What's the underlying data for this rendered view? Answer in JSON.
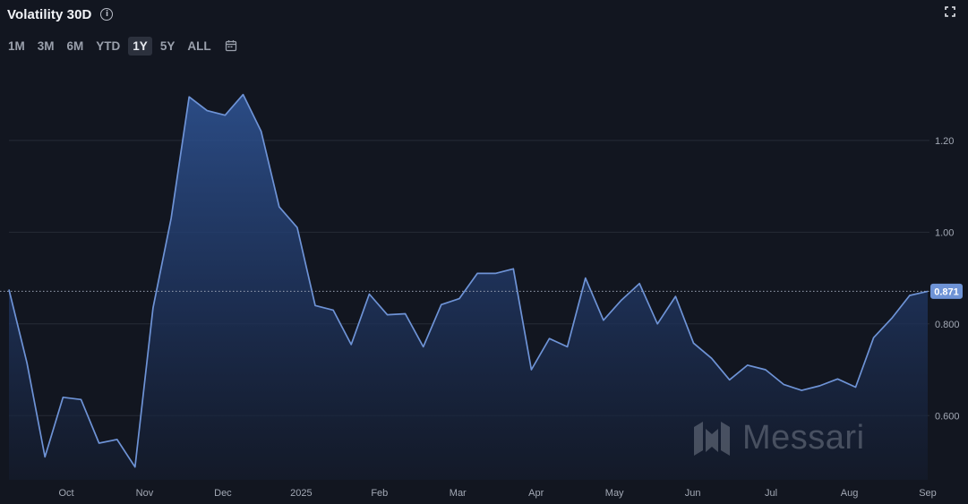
{
  "header": {
    "title": "Volatility 30D"
  },
  "range_buttons": [
    "1M",
    "3M",
    "6M",
    "YTD",
    "1Y",
    "5Y",
    "ALL"
  ],
  "active_range": "1Y",
  "watermark": {
    "text": "Messari"
  },
  "icons": {
    "info": "info-icon",
    "expand": "expand-icon",
    "calendar": "calendar-icon",
    "brand": "messari-logo-icon"
  },
  "chart_data": {
    "type": "area",
    "title": "Volatility 30D",
    "xlabel": "",
    "ylabel": "",
    "ylim": [
      0.46,
      1.35
    ],
    "x_tick_labels": [
      "Oct",
      "Nov",
      "Dec",
      "2025",
      "Feb",
      "Mar",
      "Apr",
      "May",
      "Jun",
      "Jul",
      "Aug",
      "Sep"
    ],
    "y_tick_labels": [
      "0.600",
      "0.800",
      "1.00",
      "1.20"
    ],
    "y_ticks": [
      0.6,
      0.8,
      1.0,
      1.2
    ],
    "current_value_label": "0.871",
    "current_value": 0.871,
    "grid": true,
    "line_color": "#6e93d6",
    "series": [
      {
        "values": [
          0.875,
          0.715,
          0.51,
          0.64,
          0.635,
          0.54,
          0.548,
          0.488,
          0.835,
          1.03,
          1.295,
          1.265,
          1.255,
          1.3,
          1.22,
          1.055,
          1.01,
          0.84,
          0.83,
          0.755,
          0.865,
          0.82,
          0.822,
          0.75,
          0.842,
          0.855,
          0.91,
          0.91,
          0.92,
          0.7,
          0.768,
          0.75,
          0.9,
          0.808,
          0.852,
          0.888,
          0.8,
          0.86,
          0.758,
          0.725,
          0.678,
          0.71,
          0.7,
          0.668,
          0.655,
          0.665,
          0.68,
          0.662,
          0.77,
          0.812,
          0.862,
          0.871
        ]
      }
    ]
  }
}
